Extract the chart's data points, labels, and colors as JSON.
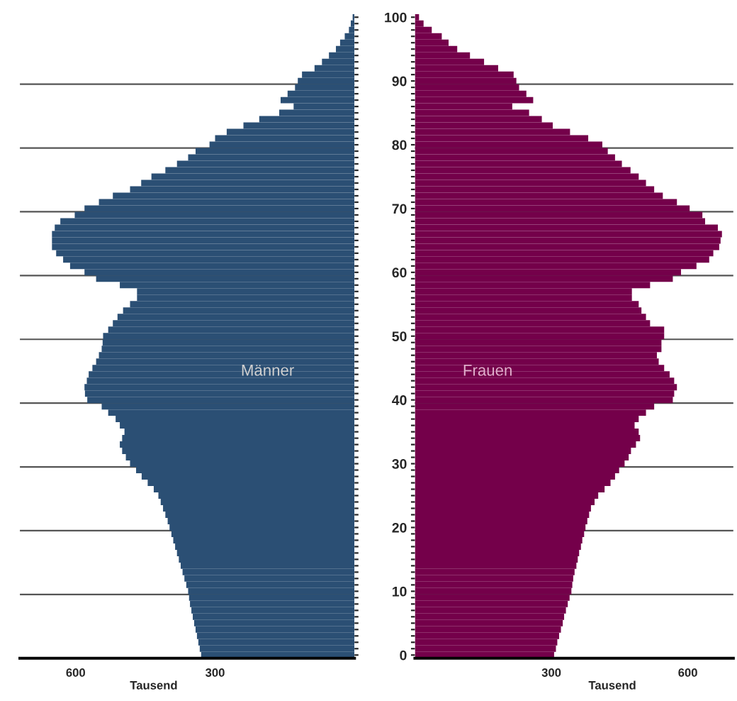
{
  "chart_data": [
    {
      "type": "bar",
      "orientation": "horizontal",
      "xlabel": "Tausend",
      "xlim": [
        720,
        0
      ],
      "xticks": [
        600,
        300
      ],
      "grid": "y",
      "legend": false,
      "tick_labels": "x",
      "categories": [
        "100",
        null,
        null,
        null,
        null,
        null,
        null,
        null,
        null,
        null,
        "90",
        null,
        null,
        null,
        null,
        null,
        null,
        null,
        null,
        null,
        "80",
        null,
        null,
        null,
        null,
        null,
        null,
        null,
        null,
        null,
        "70",
        null,
        null,
        null,
        null,
        null,
        null,
        null,
        null,
        null,
        "60",
        null,
        null,
        null,
        null,
        null,
        null,
        null,
        null,
        null,
        "50",
        null,
        null,
        null,
        null,
        null,
        null,
        null,
        null,
        null,
        "40",
        null,
        null,
        null,
        null,
        null,
        null,
        null,
        null,
        null,
        "30",
        null,
        null,
        null,
        null,
        null,
        null,
        null,
        null,
        null,
        "20",
        null,
        null,
        null,
        null,
        null,
        null,
        null,
        null,
        null,
        "10",
        null,
        null,
        null,
        null,
        null,
        null,
        null,
        null,
        null,
        "0"
      ],
      "series": [
        {
          "name": "Männer",
          "color": "#2b4f74",
          "values": [
            4,
            8,
            12,
            21,
            31,
            40,
            55,
            70,
            86,
            113,
            122,
            128,
            144,
            159,
            131,
            162,
            205,
            239,
            275,
            300,
            312,
            342,
            358,
            382,
            407,
            437,
            459,
            483,
            520,
            550,
            581,
            602,
            633,
            645,
            651,
            651,
            651,
            642,
            627,
            612,
            581,
            556,
            505,
            468,
            468,
            483,
            498,
            510,
            520,
            530,
            541,
            542,
            544,
            550,
            556,
            564,
            572,
            576,
            581,
            580,
            575,
            544,
            530,
            514,
            505,
            495,
            500,
            505,
            500,
            492,
            483,
            470,
            458,
            445,
            432,
            422,
            417,
            412,
            407,
            402,
            398,
            394,
            390,
            386,
            382,
            378,
            374,
            370,
            366,
            362,
            358,
            356,
            354,
            351,
            348,
            345,
            342,
            339,
            336,
            333,
            330
          ]
        }
      ]
    },
    {
      "type": "bar",
      "orientation": "horizontal",
      "xlabel": "Tausend",
      "xlim": [
        0,
        700
      ],
      "xticks": [
        300,
        600
      ],
      "grid": "y",
      "legend": false,
      "categories": [
        "100",
        null,
        null,
        null,
        null,
        null,
        null,
        null,
        null,
        null,
        "90",
        null,
        null,
        null,
        null,
        null,
        null,
        null,
        null,
        null,
        "80",
        null,
        null,
        null,
        null,
        null,
        null,
        null,
        null,
        null,
        "70",
        null,
        null,
        null,
        null,
        null,
        null,
        null,
        null,
        null,
        "60",
        null,
        null,
        null,
        null,
        null,
        null,
        null,
        null,
        null,
        "50",
        null,
        null,
        null,
        null,
        null,
        null,
        null,
        null,
        null,
        "40",
        null,
        null,
        null,
        null,
        null,
        null,
        null,
        null,
        null,
        "30",
        null,
        null,
        null,
        null,
        null,
        null,
        null,
        null,
        null,
        "20",
        null,
        null,
        null,
        null,
        null,
        null,
        null,
        null,
        null,
        "10",
        null,
        null,
        null,
        null,
        null,
        null,
        null,
        null,
        null,
        "0"
      ],
      "series": [
        {
          "name": "Frauen",
          "color": "#74004a",
          "values": [
            9,
            19,
            37,
            59,
            74,
            93,
            121,
            152,
            183,
            217,
            223,
            229,
            245,
            260,
            214,
            251,
            279,
            303,
            341,
            381,
            412,
            424,
            440,
            455,
            474,
            492,
            508,
            526,
            545,
            576,
            604,
            632,
            638,
            666,
            675,
            672,
            669,
            656,
            647,
            619,
            585,
            567,
            517,
            477,
            477,
            492,
            498,
            508,
            517,
            548,
            548,
            542,
            542,
            532,
            536,
            548,
            560,
            570,
            576,
            570,
            567,
            526,
            508,
            492,
            483,
            492,
            495,
            486,
            475,
            470,
            461,
            449,
            440,
            430,
            417,
            403,
            395,
            387,
            383,
            379,
            375,
            372,
            368,
            365,
            361,
            358,
            355,
            351,
            348,
            346,
            344,
            340,
            336,
            332,
            328,
            325,
            321,
            317,
            313,
            310,
            306
          ]
        }
      ]
    }
  ]
}
